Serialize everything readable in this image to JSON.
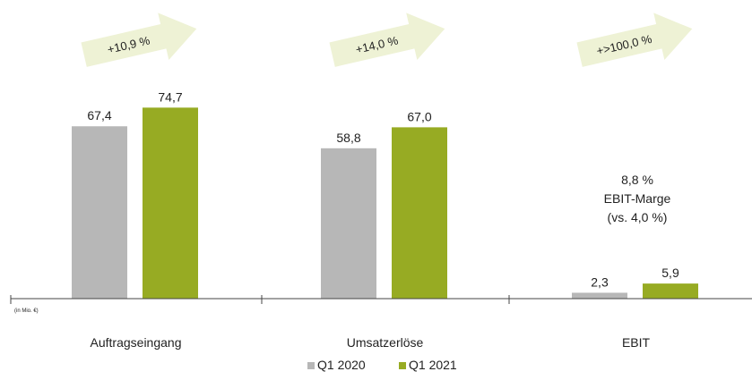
{
  "chart_data": {
    "type": "bar",
    "categories": [
      "Auftragseingang",
      "Umsatzerlöse",
      "EBIT"
    ],
    "series": [
      {
        "name": "Q1 2020",
        "values": [
          67.4,
          58.8,
          2.3
        ],
        "labels": [
          "67,4",
          "58,8",
          "2,3"
        ],
        "color": "#b7b7b7"
      },
      {
        "name": "Q1 2021",
        "values": [
          74.7,
          67.0,
          5.9
        ],
        "labels": [
          "74,7",
          "67,0",
          "5,9"
        ],
        "color": "#97ab23"
      }
    ],
    "growth": [
      "+10,9 %",
      "+14,0 %",
      "+>100,0 %"
    ],
    "growth_color": "#eef2d5",
    "unit_note": "(in Mio. €)",
    "annotation": [
      "8,8 %",
      "EBIT-Marge",
      "(vs. 4,0 %)"
    ],
    "ylim": [
      0,
      80
    ],
    "grid": false,
    "legend_position": "bottom-center"
  }
}
